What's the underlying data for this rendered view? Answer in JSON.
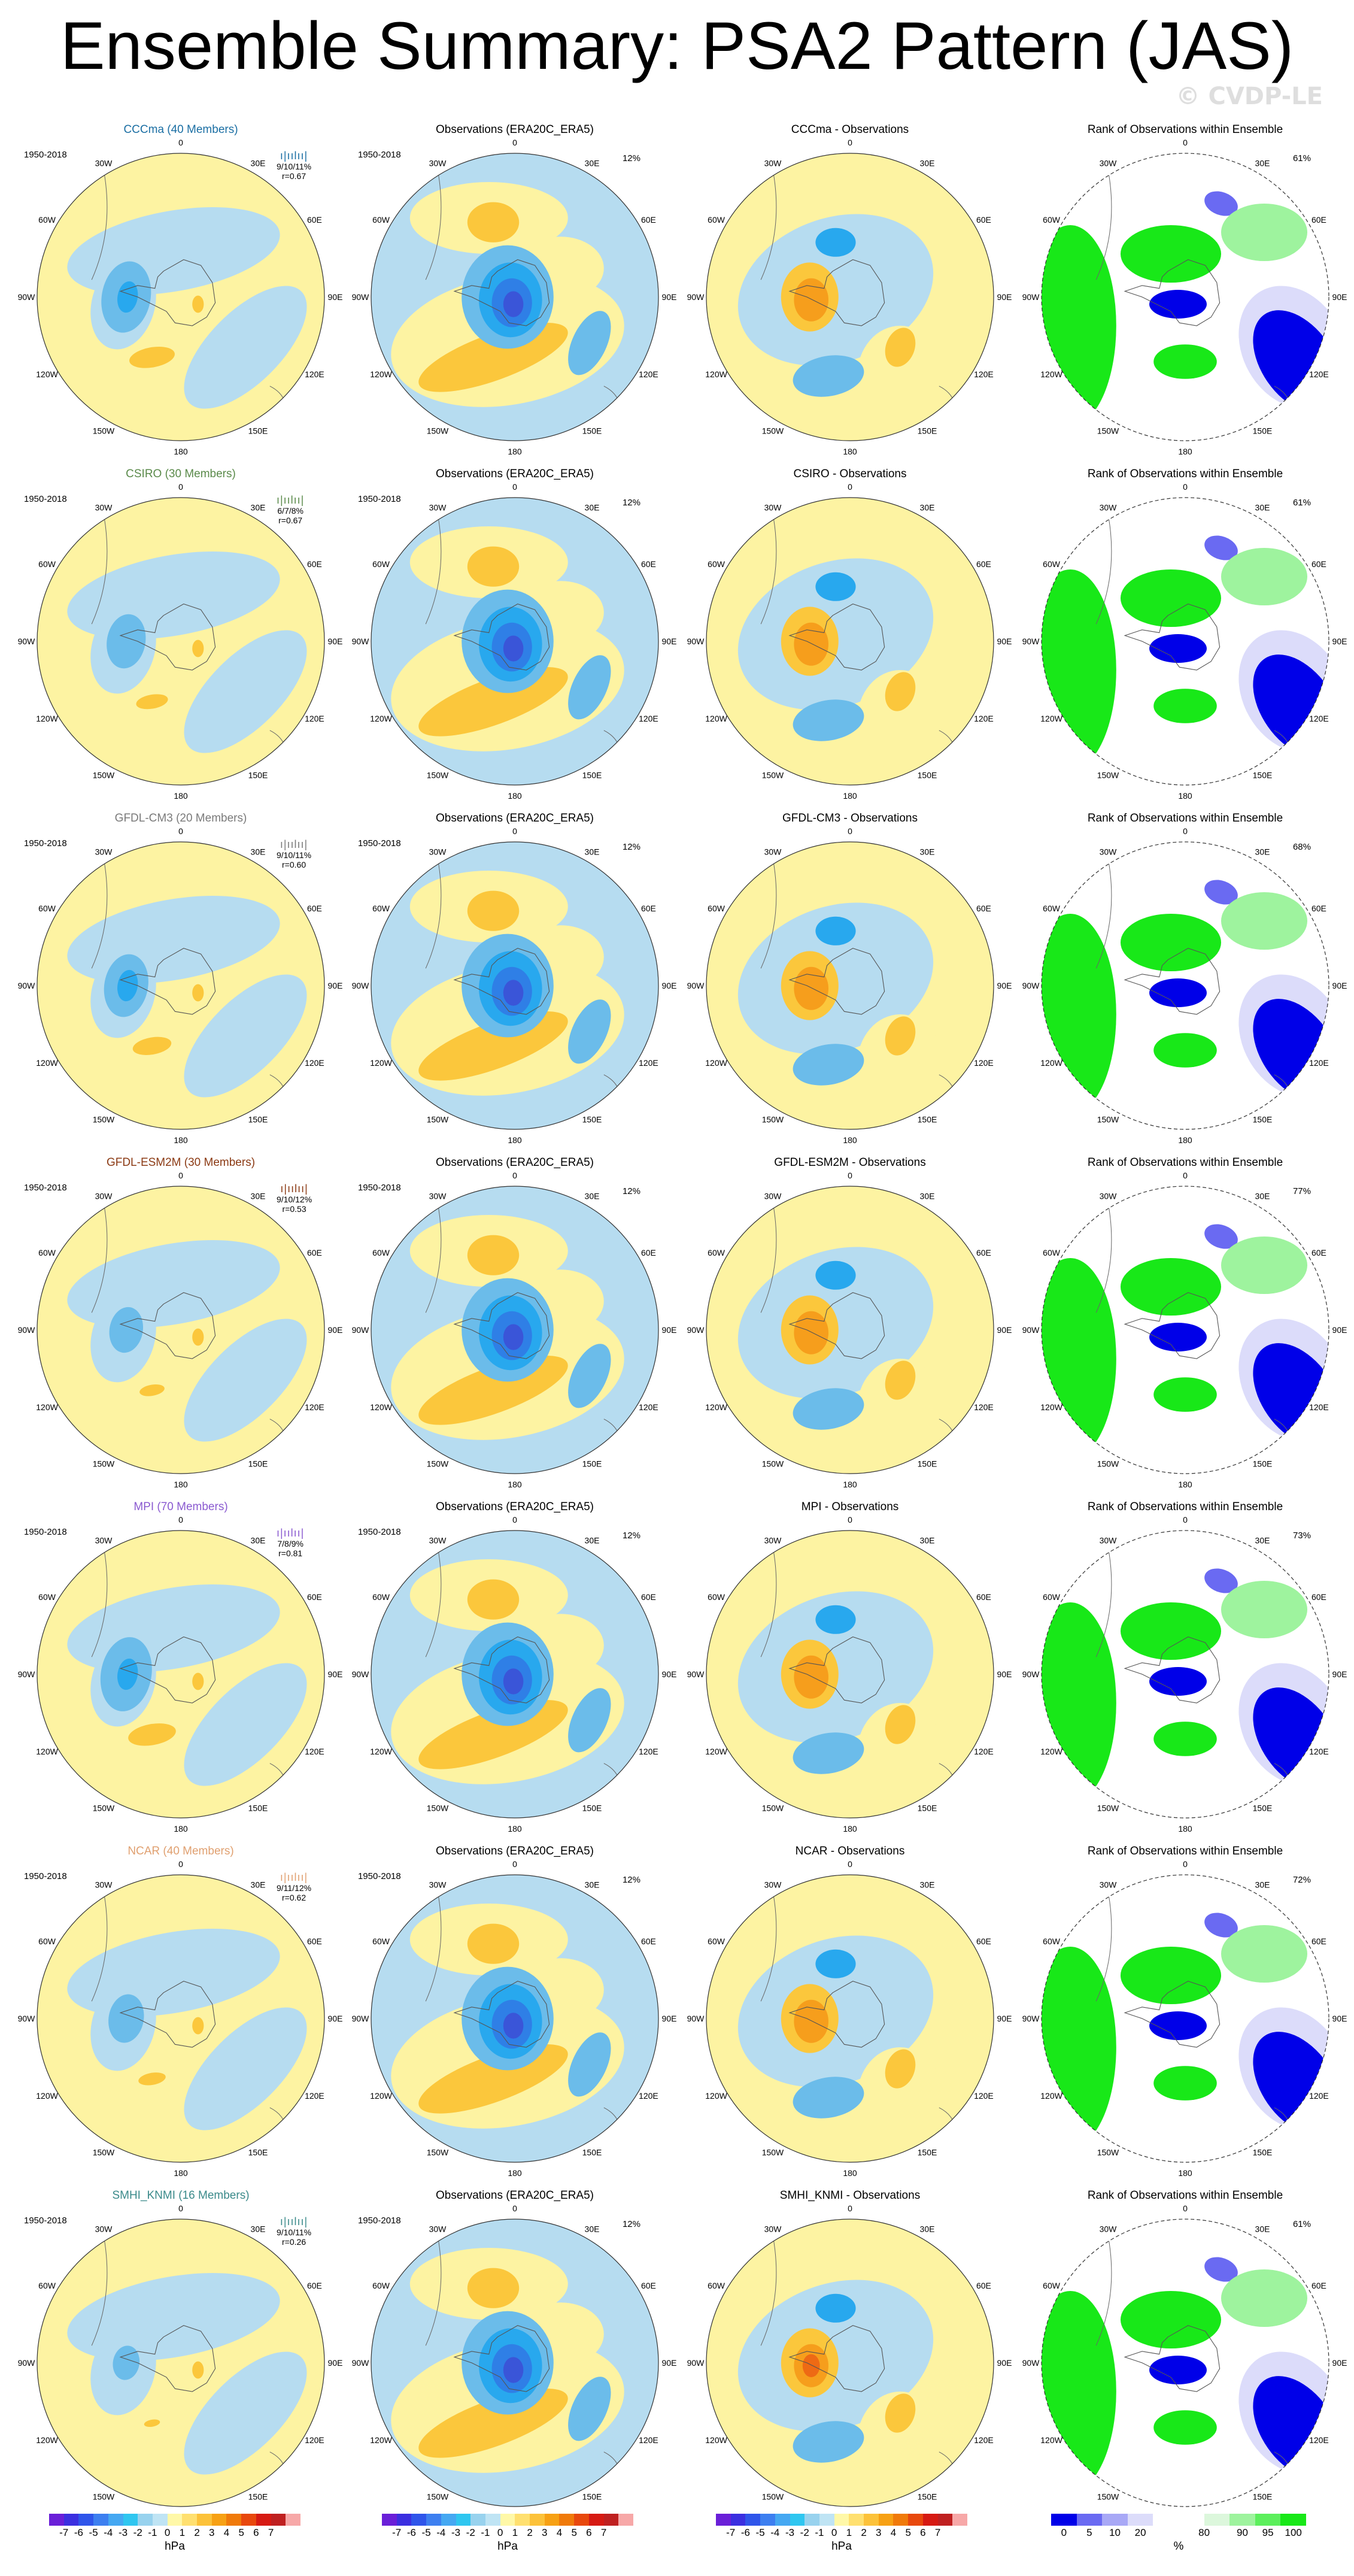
{
  "title": "Ensemble Summary: PSA2 Pattern (JAS)",
  "watermark": "© CVDP-LE",
  "period": "1950-2018",
  "obs_title": "Observations (ERA20C_ERA5)",
  "obs_pct": "12%",
  "rank_title": "Rank of Observations within Ensemble",
  "lon_labels": [
    "0",
    "30E",
    "60E",
    "90E",
    "120E",
    "150E",
    "180",
    "150W",
    "120W",
    "90W",
    "60W",
    "30W"
  ],
  "rows": [
    {
      "name": "CCCma (40 Members)",
      "name_color": "#1a6ea3",
      "diff_title": "CCCma - Observations",
      "stat1": "9/10/11%",
      "stat2": "r=0.67",
      "rank_pct": "61%"
    },
    {
      "name": "CSIRO (30 Members)",
      "name_color": "#5a8a4a",
      "diff_title": "CSIRO - Observations",
      "stat1": "6/7/8%",
      "stat2": "r=0.67",
      "rank_pct": "61%"
    },
    {
      "name": "GFDL-CM3 (20 Members)",
      "name_color": "#7a7a7a",
      "diff_title": "GFDL-CM3 - Observations",
      "stat1": "9/10/11%",
      "stat2": "r=0.60",
      "rank_pct": "68%"
    },
    {
      "name": "GFDL-ESM2M (30 Members)",
      "name_color": "#8b3a14",
      "diff_title": "GFDL-ESM2M - Observations",
      "stat1": "9/10/12%",
      "stat2": "r=0.53",
      "rank_pct": "77%"
    },
    {
      "name": "MPI (70 Members)",
      "name_color": "#8a5ad0",
      "diff_title": "MPI - Observations",
      "stat1": "7/8/9%",
      "stat2": "r=0.81",
      "rank_pct": "73%"
    },
    {
      "name": "NCAR (40 Members)",
      "name_color": "#e0a070",
      "diff_title": "NCAR - Observations",
      "stat1": "9/11/12%",
      "stat2": "r=0.62",
      "rank_pct": "72%"
    },
    {
      "name": "SMHI_KNMI (16 Members)",
      "name_color": "#3a8a8a",
      "diff_title": "SMHI_KNMI - Observations",
      "stat1": "9/10/11%",
      "stat2": "r=0.26",
      "rank_pct": "61%"
    }
  ],
  "colorbar_hpa": {
    "colors": [
      "#6a1fd8",
      "#3b2fe0",
      "#2f55ea",
      "#3d7ff0",
      "#45a8f2",
      "#2fc6f0",
      "#98d2ee",
      "#bfe4f4",
      "#fff8a8",
      "#ffe070",
      "#fcc23a",
      "#f7a114",
      "#f07a0a",
      "#e8480d",
      "#d61a13",
      "#bf2020",
      "#f7a8a8"
    ],
    "ticks": [
      "-7",
      "-6",
      "-5",
      "-4",
      "-3",
      "-2",
      "-1",
      "0",
      "1",
      "2",
      "3",
      "4",
      "5",
      "6",
      "7"
    ],
    "unit": "hPa"
  },
  "colorbar_pct": {
    "colors": [
      "#0000e8",
      "#6a6af2",
      "#a8a8f6",
      "#dcdcfa",
      "#ffffff",
      "#ffffff",
      "#dcf7dc",
      "#9ef39e",
      "#5cef5c",
      "#18e818"
    ],
    "ticks": [
      "0",
      "5",
      "10",
      "20",
      "80",
      "90",
      "95",
      "100"
    ],
    "unit": "%"
  },
  "colors": {
    "neg1": "#b6dcf0",
    "neg2": "#6bbcea",
    "neg3": "#28a8ee",
    "neg4": "#2f7fe6",
    "neg5": "#3a55d8",
    "pos1": "#fdf3a2",
    "pos2": "#fbc73c",
    "pos3": "#f69e1c",
    "pos4": "#ee6a14",
    "rank_lo": "#0000e8",
    "rank_lo2": "#6a6af2",
    "rank_lo3": "#dcdcfa",
    "rank_hi": "#18e818",
    "rank_hi2": "#9ef39e"
  }
}
